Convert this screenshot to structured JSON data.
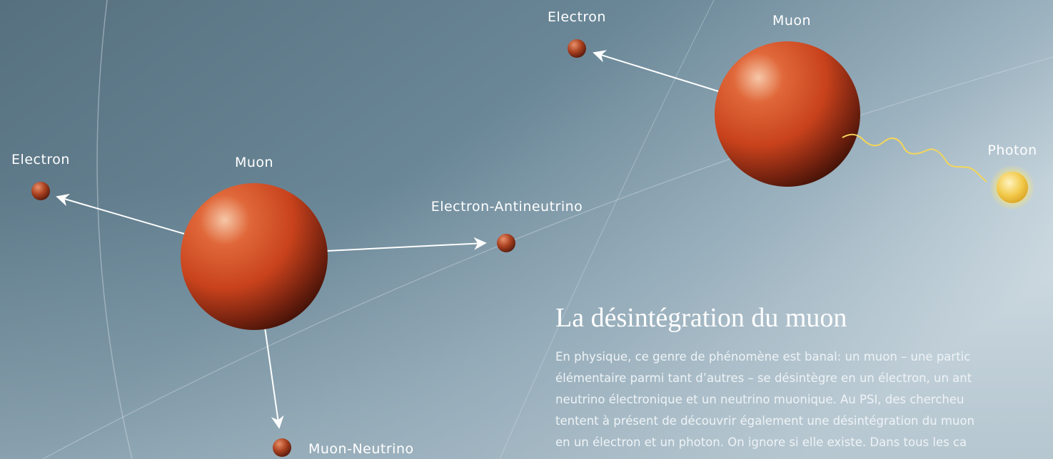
{
  "diagram_left": {
    "center": "Muon",
    "products": [
      "Electron",
      "Electron-Antineutrino",
      "Muon-Neutrino"
    ]
  },
  "diagram_right": {
    "center": "Muon",
    "products": [
      "Electron",
      "Photon"
    ]
  },
  "article": {
    "title": "La désintégration du muon",
    "lines": [
      "En physique, ce genre de phénomène est banal: un muon – une partic",
      "élémentaire parmi tant d’autres – se désintègre en un électron, un ant",
      "neutrino électronique et un neutrino muonique. Au PSI, des chercheu",
      "tentent à présent de découvrir également une désintégration du muon",
      "en un électron et un photon. On ignore si elle existe. Dans tous les ca"
    ]
  }
}
